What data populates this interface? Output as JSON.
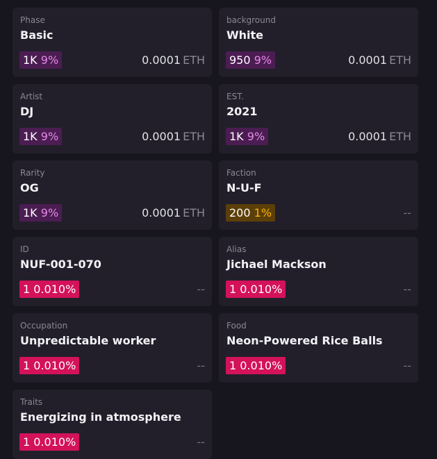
{
  "traits": [
    {
      "type": "Phase",
      "value": "Basic",
      "count": "1K",
      "percent": "9%",
      "price": "0.0001",
      "currency": "ETH",
      "badge_color": "#4b1d52",
      "percent_color": "#e58ae6"
    },
    {
      "type": "background",
      "value": "White",
      "count": "950",
      "percent": "9%",
      "price": "0.0001",
      "currency": "ETH",
      "badge_color": "#4b1d52",
      "percent_color": "#e58ae6"
    },
    {
      "type": "Artist",
      "value": "DJ",
      "count": "1K",
      "percent": "9%",
      "price": "0.0001",
      "currency": "ETH",
      "badge_color": "#4b1d52",
      "percent_color": "#e58ae6"
    },
    {
      "type": "EST.",
      "value": "2021",
      "count": "1K",
      "percent": "9%",
      "price": "0.0001",
      "currency": "ETH",
      "badge_color": "#4b1d52",
      "percent_color": "#e58ae6"
    },
    {
      "type": "Rarity",
      "value": "OG",
      "count": "1K",
      "percent": "9%",
      "price": "0.0001",
      "currency": "ETH",
      "badge_color": "#4b1d52",
      "percent_color": "#e58ae6"
    },
    {
      "type": "Faction",
      "value": "N-U-F",
      "count": "200",
      "percent": "1%",
      "price": "--",
      "badge_color": "#5c3f08",
      "percent_color": "#f5b512"
    },
    {
      "type": "ID",
      "value": "NUF-001-070",
      "count": "1",
      "percent": "0.010%",
      "price": "--",
      "badge_color": "#d3125a",
      "percent_color": "#ffffff"
    },
    {
      "type": "Alias",
      "value": "Jichael Mackson",
      "count": "1",
      "percent": "0.010%",
      "price": "--",
      "badge_color": "#d3125a",
      "percent_color": "#ffffff"
    },
    {
      "type": "Occupation",
      "value": "Unpredictable worker",
      "count": "1",
      "percent": "0.010%",
      "price": "--",
      "badge_color": "#d3125a",
      "percent_color": "#ffffff"
    },
    {
      "type": "Food",
      "value": "Neon-Powered Rice Balls",
      "count": "1",
      "percent": "0.010%",
      "price": "--",
      "badge_color": "#d3125a",
      "percent_color": "#ffffff"
    },
    {
      "type": "Traits",
      "value": "Energizing in atmosphere",
      "count": "1",
      "percent": "0.010%",
      "price": "--",
      "badge_color": "#d3125a",
      "percent_color": "#ffffff"
    }
  ]
}
